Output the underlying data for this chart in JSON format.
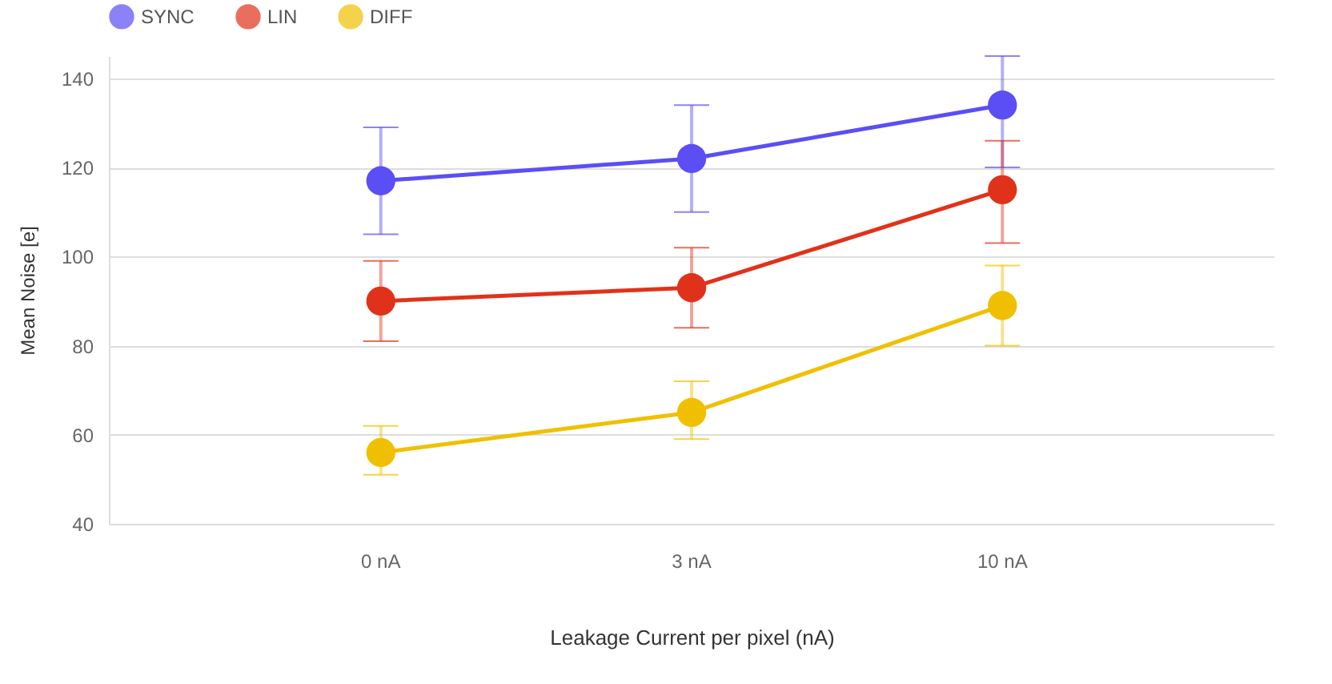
{
  "chart_data": {
    "type": "line",
    "xlabel": "Leakage Current per pixel (nA)",
    "ylabel": "Mean Noise [e]",
    "categories": [
      "0 nA",
      "3 nA",
      "10 nA"
    ],
    "series": [
      {
        "name": "SYNC",
        "color": "#5b4ef5",
        "values": [
          117,
          122,
          134
        ],
        "errors": [
          [
            105,
            129
          ],
          [
            110,
            134
          ],
          [
            120,
            145
          ]
        ]
      },
      {
        "name": "LIN",
        "color": "#e0321a",
        "values": [
          90,
          93,
          115
        ],
        "errors": [
          [
            81,
            99
          ],
          [
            84,
            102
          ],
          [
            103,
            126
          ]
        ]
      },
      {
        "name": "DIFF",
        "color": "#f0c000",
        "values": [
          56,
          65,
          89
        ],
        "errors": [
          [
            51,
            62
          ],
          [
            59,
            72
          ],
          [
            80,
            98
          ]
        ]
      }
    ],
    "ylim": [
      40,
      145
    ],
    "yticks": [
      40,
      60,
      80,
      100,
      120,
      140
    ],
    "grid": "y",
    "legend": "top",
    "marker": "circle"
  }
}
